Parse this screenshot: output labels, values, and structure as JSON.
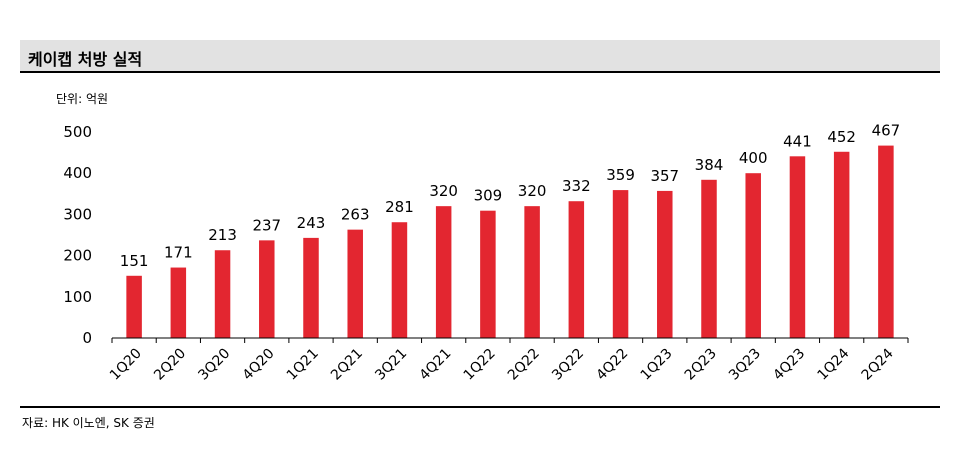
{
  "title": "케이캡 처방 실적",
  "unit_label": "단위: 억원",
  "source": "자료: HK 이노엔, SK 증권",
  "colors": {
    "bar": "#e32630",
    "title_bg": "#e2e2e2"
  },
  "chart_data": {
    "type": "bar",
    "categories": [
      "1Q20",
      "2Q20",
      "3Q20",
      "4Q20",
      "1Q21",
      "2Q21",
      "3Q21",
      "4Q21",
      "1Q22",
      "2Q22",
      "3Q22",
      "4Q22",
      "1Q23",
      "2Q23",
      "3Q23",
      "4Q23",
      "1Q24",
      "2Q24"
    ],
    "values": [
      151,
      171,
      213,
      237,
      243,
      263,
      281,
      320,
      309,
      320,
      332,
      359,
      357,
      384,
      400,
      441,
      452,
      467
    ],
    "ylim": [
      0,
      500
    ],
    "yticks": [
      0,
      100,
      200,
      300,
      400,
      500
    ],
    "grid": false,
    "data_labels": true
  }
}
